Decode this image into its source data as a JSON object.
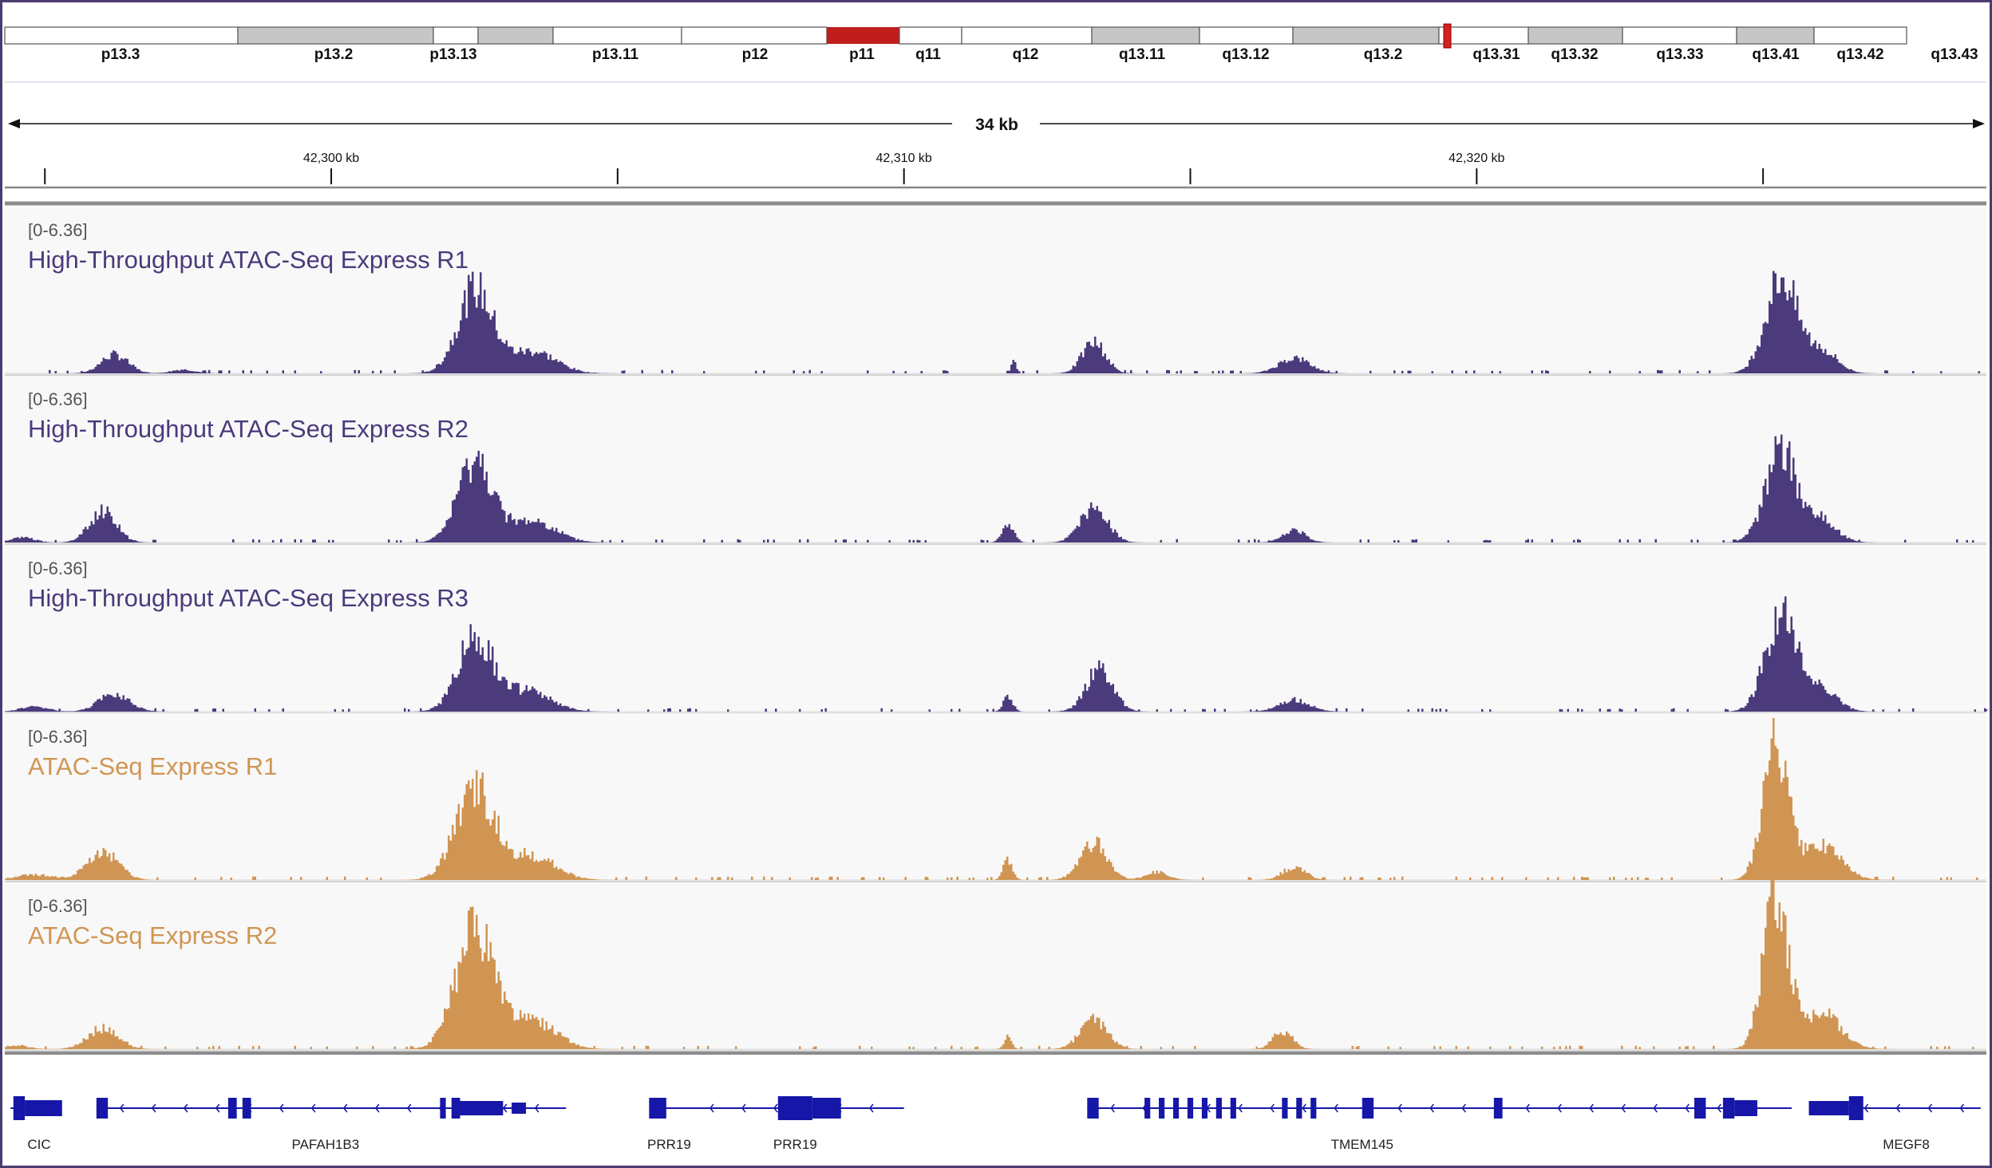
{
  "colors": {
    "frame": "#4a3b6e",
    "purple": "#4b3a7c",
    "orange": "#d19553",
    "ideogram_dark": "#c6c6c6",
    "ideogram_light": "#ffffff",
    "centromere": "#c01d1d",
    "gene": "#1616a8"
  },
  "ideogram": {
    "bands": [
      "p13.3",
      "p13.2",
      "p13.13",
      "p13.11",
      "p12",
      "p11",
      "q11",
      "q12",
      "q13.11",
      "q13.12",
      "q13.2",
      "q13.31",
      "q13.32",
      "q13.33",
      "q13.41",
      "q13.42",
      "q13.43"
    ]
  },
  "ruler": {
    "span_label": "34 kb",
    "tick_labels": [
      "42,300 kb",
      "42,310 kb",
      "42,320 kb"
    ]
  },
  "chart_data": {
    "type": "area",
    "x_unit": "kb",
    "xlim": [
      42294.3,
      42328.9
    ],
    "ruler_ticks_kb": [
      42295,
      42300,
      42305,
      42310,
      42315,
      42320,
      42325
    ],
    "data_range": "[0-6.36]",
    "ylim": [
      0,
      6.36
    ],
    "tracks": [
      {
        "name": "High-Throughput ATAC-Seq Express R1",
        "color_key": "purple",
        "peaks": [
          {
            "pos": 42296.2,
            "height": 0.72,
            "width": 0.35
          },
          {
            "pos": 42297.4,
            "height": 0.15,
            "width": 0.3
          },
          {
            "pos": 42302.5,
            "height": 3.25,
            "width": 0.45
          },
          {
            "pos": 42303.5,
            "height": 0.85,
            "width": 0.6
          },
          {
            "pos": 42311.9,
            "height": 0.55,
            "width": 0.06
          },
          {
            "pos": 42313.3,
            "height": 1.2,
            "width": 0.3
          },
          {
            "pos": 42316.8,
            "height": 0.6,
            "width": 0.4
          },
          {
            "pos": 42325.3,
            "height": 3.7,
            "width": 0.4
          },
          {
            "pos": 42326.0,
            "height": 0.9,
            "width": 0.4
          }
        ]
      },
      {
        "name": "High-Throughput ATAC-Seq Express R2",
        "color_key": "purple",
        "peaks": [
          {
            "pos": 42296.0,
            "height": 1.2,
            "width": 0.35
          },
          {
            "pos": 42294.6,
            "height": 0.2,
            "width": 0.3
          },
          {
            "pos": 42302.5,
            "height": 3.05,
            "width": 0.45
          },
          {
            "pos": 42303.5,
            "height": 0.8,
            "width": 0.6
          },
          {
            "pos": 42311.8,
            "height": 0.7,
            "width": 0.15
          },
          {
            "pos": 42313.3,
            "height": 1.4,
            "width": 0.35
          },
          {
            "pos": 42316.8,
            "height": 0.45,
            "width": 0.3
          },
          {
            "pos": 42325.3,
            "height": 3.5,
            "width": 0.4
          },
          {
            "pos": 42326.0,
            "height": 0.85,
            "width": 0.4
          }
        ]
      },
      {
        "name": "High-Throughput ATAC-Seq Express R3",
        "color_key": "purple",
        "peaks": [
          {
            "pos": 42296.2,
            "height": 0.7,
            "width": 0.4
          },
          {
            "pos": 42294.8,
            "height": 0.2,
            "width": 0.35
          },
          {
            "pos": 42302.5,
            "height": 2.9,
            "width": 0.45
          },
          {
            "pos": 42303.4,
            "height": 0.8,
            "width": 0.6
          },
          {
            "pos": 42311.8,
            "height": 0.6,
            "width": 0.12
          },
          {
            "pos": 42313.4,
            "height": 1.65,
            "width": 0.35
          },
          {
            "pos": 42316.8,
            "height": 0.45,
            "width": 0.4
          },
          {
            "pos": 42325.3,
            "height": 3.8,
            "width": 0.4
          },
          {
            "pos": 42326.0,
            "height": 0.95,
            "width": 0.4
          }
        ]
      },
      {
        "name": "ATAC-Seq Express R1",
        "color_key": "orange",
        "peaks": [
          {
            "pos": 42296.0,
            "height": 1.1,
            "width": 0.4
          },
          {
            "pos": 42294.8,
            "height": 0.2,
            "width": 0.5
          },
          {
            "pos": 42302.5,
            "height": 3.6,
            "width": 0.5
          },
          {
            "pos": 42303.5,
            "height": 0.9,
            "width": 0.6
          },
          {
            "pos": 42311.8,
            "height": 0.8,
            "width": 0.12
          },
          {
            "pos": 42313.3,
            "height": 1.4,
            "width": 0.35
          },
          {
            "pos": 42314.4,
            "height": 0.3,
            "width": 0.3
          },
          {
            "pos": 42316.8,
            "height": 0.5,
            "width": 0.3
          },
          {
            "pos": 42325.2,
            "height": 5.4,
            "width": 0.32
          },
          {
            "pos": 42326.0,
            "height": 1.3,
            "width": 0.5
          }
        ]
      },
      {
        "name": "ATAC-Seq Express R2",
        "color_key": "orange",
        "peaks": [
          {
            "pos": 42296.0,
            "height": 0.8,
            "width": 0.4
          },
          {
            "pos": 42294.5,
            "height": 0.15,
            "width": 0.3
          },
          {
            "pos": 42302.5,
            "height": 4.7,
            "width": 0.5
          },
          {
            "pos": 42303.5,
            "height": 1.1,
            "width": 0.6
          },
          {
            "pos": 42311.8,
            "height": 0.5,
            "width": 0.1
          },
          {
            "pos": 42313.3,
            "height": 1.1,
            "width": 0.35
          },
          {
            "pos": 42316.6,
            "height": 0.7,
            "width": 0.25
          },
          {
            "pos": 42325.2,
            "height": 6.0,
            "width": 0.32
          },
          {
            "pos": 42326.0,
            "height": 1.4,
            "width": 0.5
          }
        ]
      }
    ],
    "genes": [
      {
        "name": "CIC",
        "start": 42294.4,
        "end": 42295.3,
        "label_pos": 42294.9
      },
      {
        "name": "PAFAH1B3",
        "start": 42295.9,
        "end": 42304.1,
        "label_pos": 42299.9
      },
      {
        "name": "PRR19",
        "start": 42305.6,
        "end": 42306.2,
        "label_pos": 42305.9
      },
      {
        "name": "PRR19",
        "start": 42306.2,
        "end": 42310.0,
        "label_pos": 42308.1
      },
      {
        "name": "TMEM145",
        "start": 42313.2,
        "end": 42325.5,
        "label_pos": 42318.0
      },
      {
        "name": "MEGF8",
        "start": 42325.8,
        "end": 42328.8,
        "label_pos": 42327.5
      }
    ]
  }
}
